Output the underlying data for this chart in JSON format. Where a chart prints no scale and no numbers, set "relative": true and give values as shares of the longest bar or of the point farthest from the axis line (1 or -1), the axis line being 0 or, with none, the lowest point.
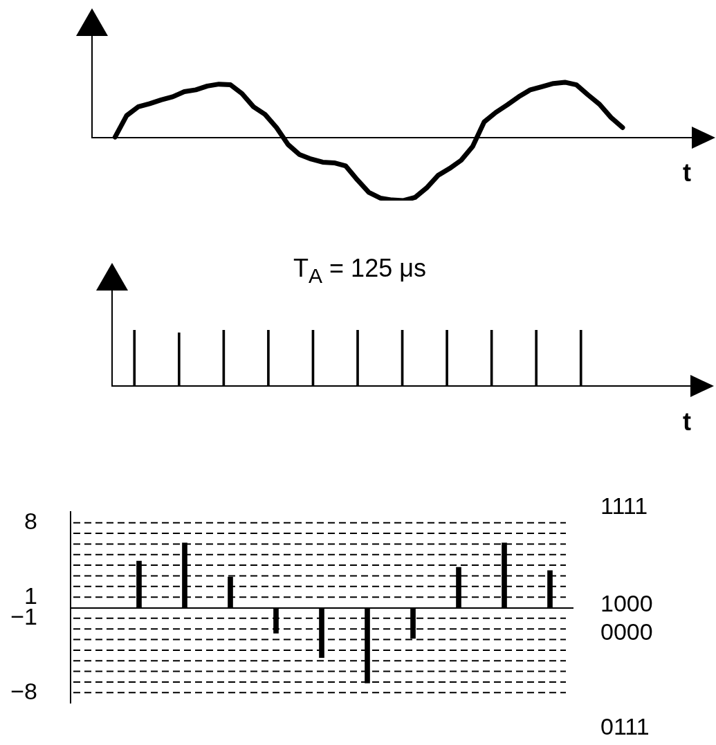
{
  "chart_data": [
    {
      "type": "line",
      "relative": true,
      "xlabel": "t",
      "color": "#000000",
      "categories": [
        null,
        null,
        null,
        null,
        null,
        null,
        null,
        null,
        null,
        null,
        null,
        null,
        null,
        null,
        null,
        null,
        null,
        null,
        null,
        null,
        null,
        null,
        null,
        null,
        null,
        null,
        null,
        null,
        null,
        null,
        null,
        null,
        null,
        null,
        null,
        null,
        null,
        null,
        null,
        null,
        null,
        null,
        null,
        null,
        null,
        null,
        null,
        null,
        null,
        null,
        null,
        null,
        null
      ],
      "values": [
        null,
        null,
        0.01,
        0.35,
        0.49,
        0.54,
        0.6,
        0.65,
        0.73,
        0.76,
        0.82,
        0.85,
        0.84,
        0.7,
        0.49,
        0.37,
        0.16,
        -0.11,
        -0.27,
        -0.34,
        -0.39,
        -0.4,
        -0.45,
        -0.67,
        -0.87,
        -0.96,
        -0.99,
        -1,
        -0.95,
        -0.8,
        -0.6,
        -0.49,
        -0.36,
        -0.14,
        0.25,
        0.4,
        0.52,
        0.65,
        0.76,
        0.81,
        0.86,
        0.88,
        0.84,
        0.68,
        0.53,
        0.32,
        0.16,
        null,
        null,
        null,
        null,
        null,
        null
      ]
    },
    {
      "type": "bar",
      "relative": true,
      "xlabel": "t",
      "color": "#000000",
      "annotations": [
        "T$_{A}$ = 125 μs"
      ],
      "categories": [
        null,
        null,
        null,
        null,
        null,
        null,
        null,
        null,
        null,
        null,
        null
      ],
      "values": [
        1,
        0.95,
        1,
        1,
        1,
        1,
        1,
        1,
        1,
        1,
        1
      ]
    },
    {
      "type": "bar",
      "color": "#000000",
      "grid": "y",
      "tick_labels": "y",
      "categories": [
        null,
        null,
        null,
        null,
        null,
        null,
        null,
        null,
        null,
        null,
        null
      ],
      "values": [
        null,
        4.4,
        6.1,
        2.9,
        -2.4,
        -4.7,
        -7.1,
        -2.9,
        3.8,
        6.1,
        3.5
      ],
      "ylim": [
        -9,
        9
      ],
      "yticks": [
        8,
        {
          "value": 7,
          "label": null
        },
        {
          "value": 6,
          "label": null
        },
        {
          "value": 5,
          "label": null
        },
        {
          "value": 4,
          "label": null
        },
        {
          "value": 3,
          "label": null
        },
        {
          "value": 2,
          "label": null
        },
        1,
        {
          "value": -1,
          "label": "−1"
        },
        {
          "value": -2,
          "label": null
        },
        {
          "value": -3,
          "label": null
        },
        {
          "value": -4,
          "label": null
        },
        {
          "value": -5,
          "label": null
        },
        {
          "value": -6,
          "label": null
        },
        {
          "value": -7,
          "label": null
        },
        {
          "value": -8,
          "label": "−8"
        }
      ],
      "annotations": [
        "1111",
        "1000",
        "0000",
        "0111"
      ]
    }
  ]
}
